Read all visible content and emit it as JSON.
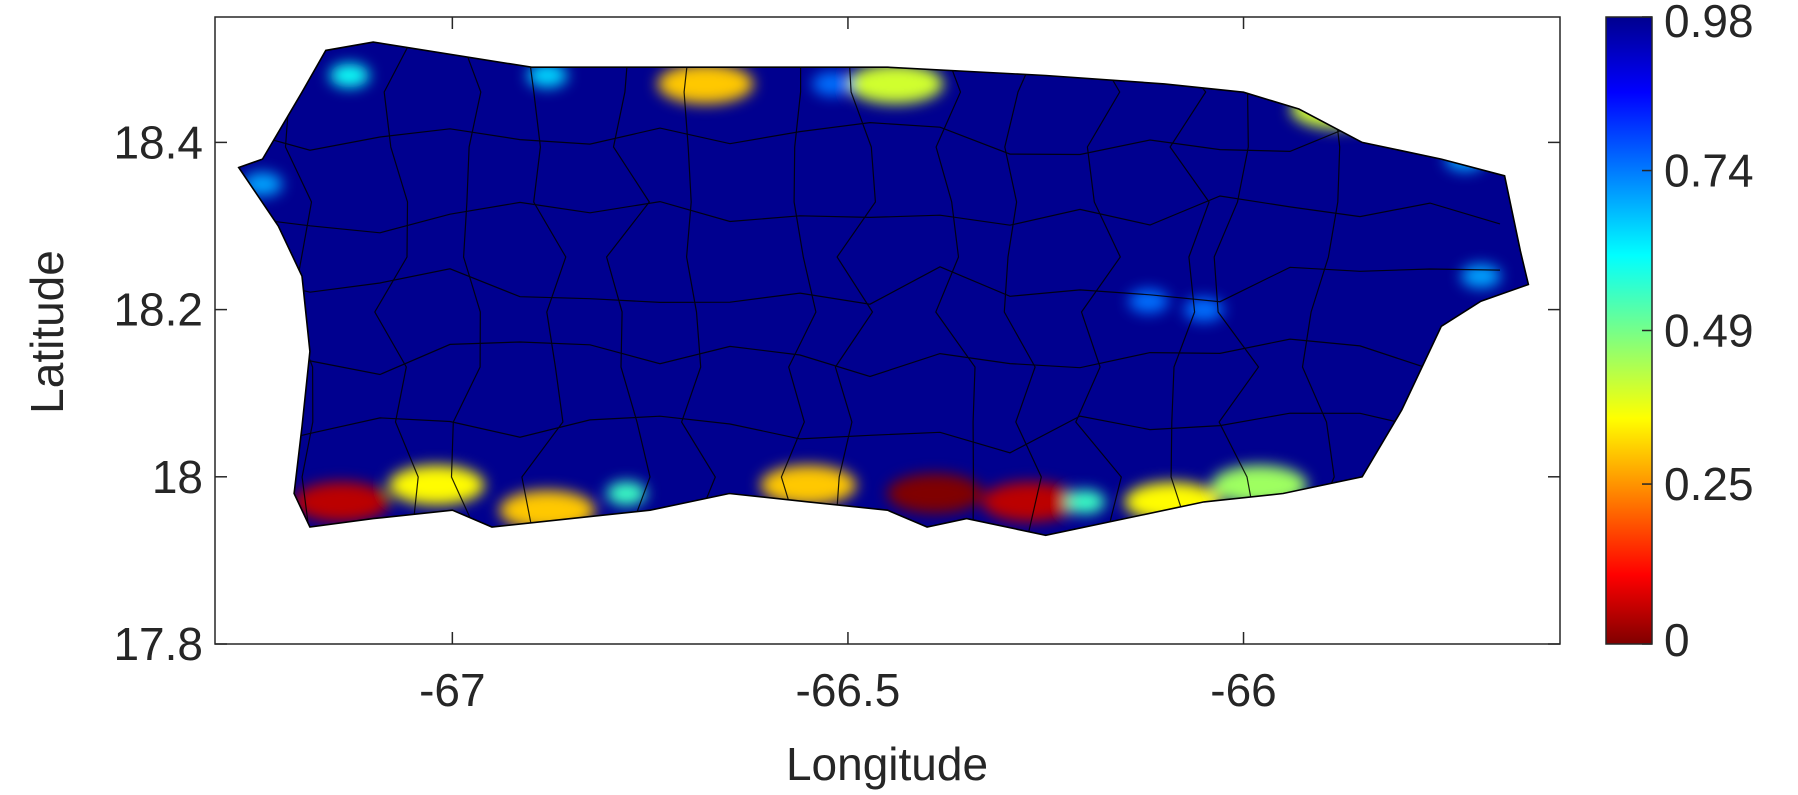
{
  "chart_data": {
    "type": "heatmap",
    "title": "",
    "xlabel": "Longitude",
    "ylabel": "Latitude",
    "xlim": [
      -67.3,
      -65.6
    ],
    "ylim": [
      17.8,
      18.55
    ],
    "xticks": [
      -67,
      -66.5,
      -66
    ],
    "xtick_labels": [
      "-67",
      "-66.5",
      "-66"
    ],
    "yticks": [
      17.8,
      18.0,
      18.2,
      18.4
    ],
    "ytick_labels": [
      "17.8",
      "18",
      "18.2",
      "18.4"
    ],
    "grid": false,
    "colormap": "jet",
    "colorbar": {
      "min": 0,
      "max": 0.98,
      "ticks": [
        0,
        0.25,
        0.49,
        0.74,
        0.98
      ],
      "tick_labels": [
        "0",
        "0.25",
        "0.49",
        "0.74",
        "0.98"
      ]
    },
    "island_outline": [
      [
        -67.27,
        18.37
      ],
      [
        -67.24,
        18.38
      ],
      [
        -67.19,
        18.46
      ],
      [
        -67.16,
        18.51
      ],
      [
        -67.1,
        18.52
      ],
      [
        -66.9,
        18.49
      ],
      [
        -66.7,
        18.49
      ],
      [
        -66.45,
        18.49
      ],
      [
        -66.25,
        18.48
      ],
      [
        -66.1,
        18.47
      ],
      [
        -66.0,
        18.46
      ],
      [
        -65.93,
        18.44
      ],
      [
        -65.85,
        18.4
      ],
      [
        -65.75,
        18.38
      ],
      [
        -65.67,
        18.36
      ],
      [
        -65.65,
        18.27
      ],
      [
        -65.64,
        18.23
      ],
      [
        -65.7,
        18.21
      ],
      [
        -65.75,
        18.18
      ],
      [
        -65.8,
        18.08
      ],
      [
        -65.85,
        18.0
      ],
      [
        -65.95,
        17.98
      ],
      [
        -66.05,
        17.97
      ],
      [
        -66.15,
        17.95
      ],
      [
        -66.25,
        17.93
      ],
      [
        -66.35,
        17.95
      ],
      [
        -66.4,
        17.94
      ],
      [
        -66.45,
        17.96
      ],
      [
        -66.55,
        17.97
      ],
      [
        -66.65,
        17.98
      ],
      [
        -66.75,
        17.96
      ],
      [
        -66.85,
        17.95
      ],
      [
        -66.95,
        17.94
      ],
      [
        -67.0,
        17.96
      ],
      [
        -67.1,
        17.95
      ],
      [
        -67.18,
        17.94
      ],
      [
        -67.2,
        17.98
      ],
      [
        -67.19,
        18.06
      ],
      [
        -67.18,
        18.15
      ],
      [
        -67.19,
        18.24
      ],
      [
        -67.22,
        18.3
      ],
      [
        -67.27,
        18.37
      ]
    ],
    "background_value": 0.98,
    "low_value_zones": [
      {
        "lon": -67.14,
        "lat": 17.97,
        "value": 0.05
      },
      {
        "lon": -67.02,
        "lat": 17.99,
        "value": 0.35
      },
      {
        "lon": -66.88,
        "lat": 17.96,
        "value": 0.3
      },
      {
        "lon": -66.78,
        "lat": 17.98,
        "value": 0.55
      },
      {
        "lon": -66.55,
        "lat": 17.99,
        "value": 0.3
      },
      {
        "lon": -66.39,
        "lat": 17.98,
        "value": 0.0
      },
      {
        "lon": -66.27,
        "lat": 17.97,
        "value": 0.05
      },
      {
        "lon": -66.2,
        "lat": 17.97,
        "value": 0.55
      },
      {
        "lon": -66.09,
        "lat": 17.97,
        "value": 0.35
      },
      {
        "lon": -65.98,
        "lat": 17.99,
        "value": 0.45
      },
      {
        "lon": -66.68,
        "lat": 18.47,
        "value": 0.3
      },
      {
        "lon": -66.44,
        "lat": 18.47,
        "value": 0.4
      },
      {
        "lon": -67.13,
        "lat": 18.48,
        "value": 0.6
      },
      {
        "lon": -66.88,
        "lat": 18.48,
        "value": 0.65
      },
      {
        "lon": -65.88,
        "lat": 18.44,
        "value": 0.4
      },
      {
        "lon": -67.24,
        "lat": 18.35,
        "value": 0.7
      },
      {
        "lon": -66.52,
        "lat": 18.47,
        "value": 0.75
      },
      {
        "lon": -66.05,
        "lat": 18.2,
        "value": 0.75
      },
      {
        "lon": -66.12,
        "lat": 18.21,
        "value": 0.75
      },
      {
        "lon": -65.72,
        "lat": 18.38,
        "value": 0.7
      },
      {
        "lon": -65.7,
        "lat": 18.24,
        "value": 0.7
      }
    ]
  }
}
